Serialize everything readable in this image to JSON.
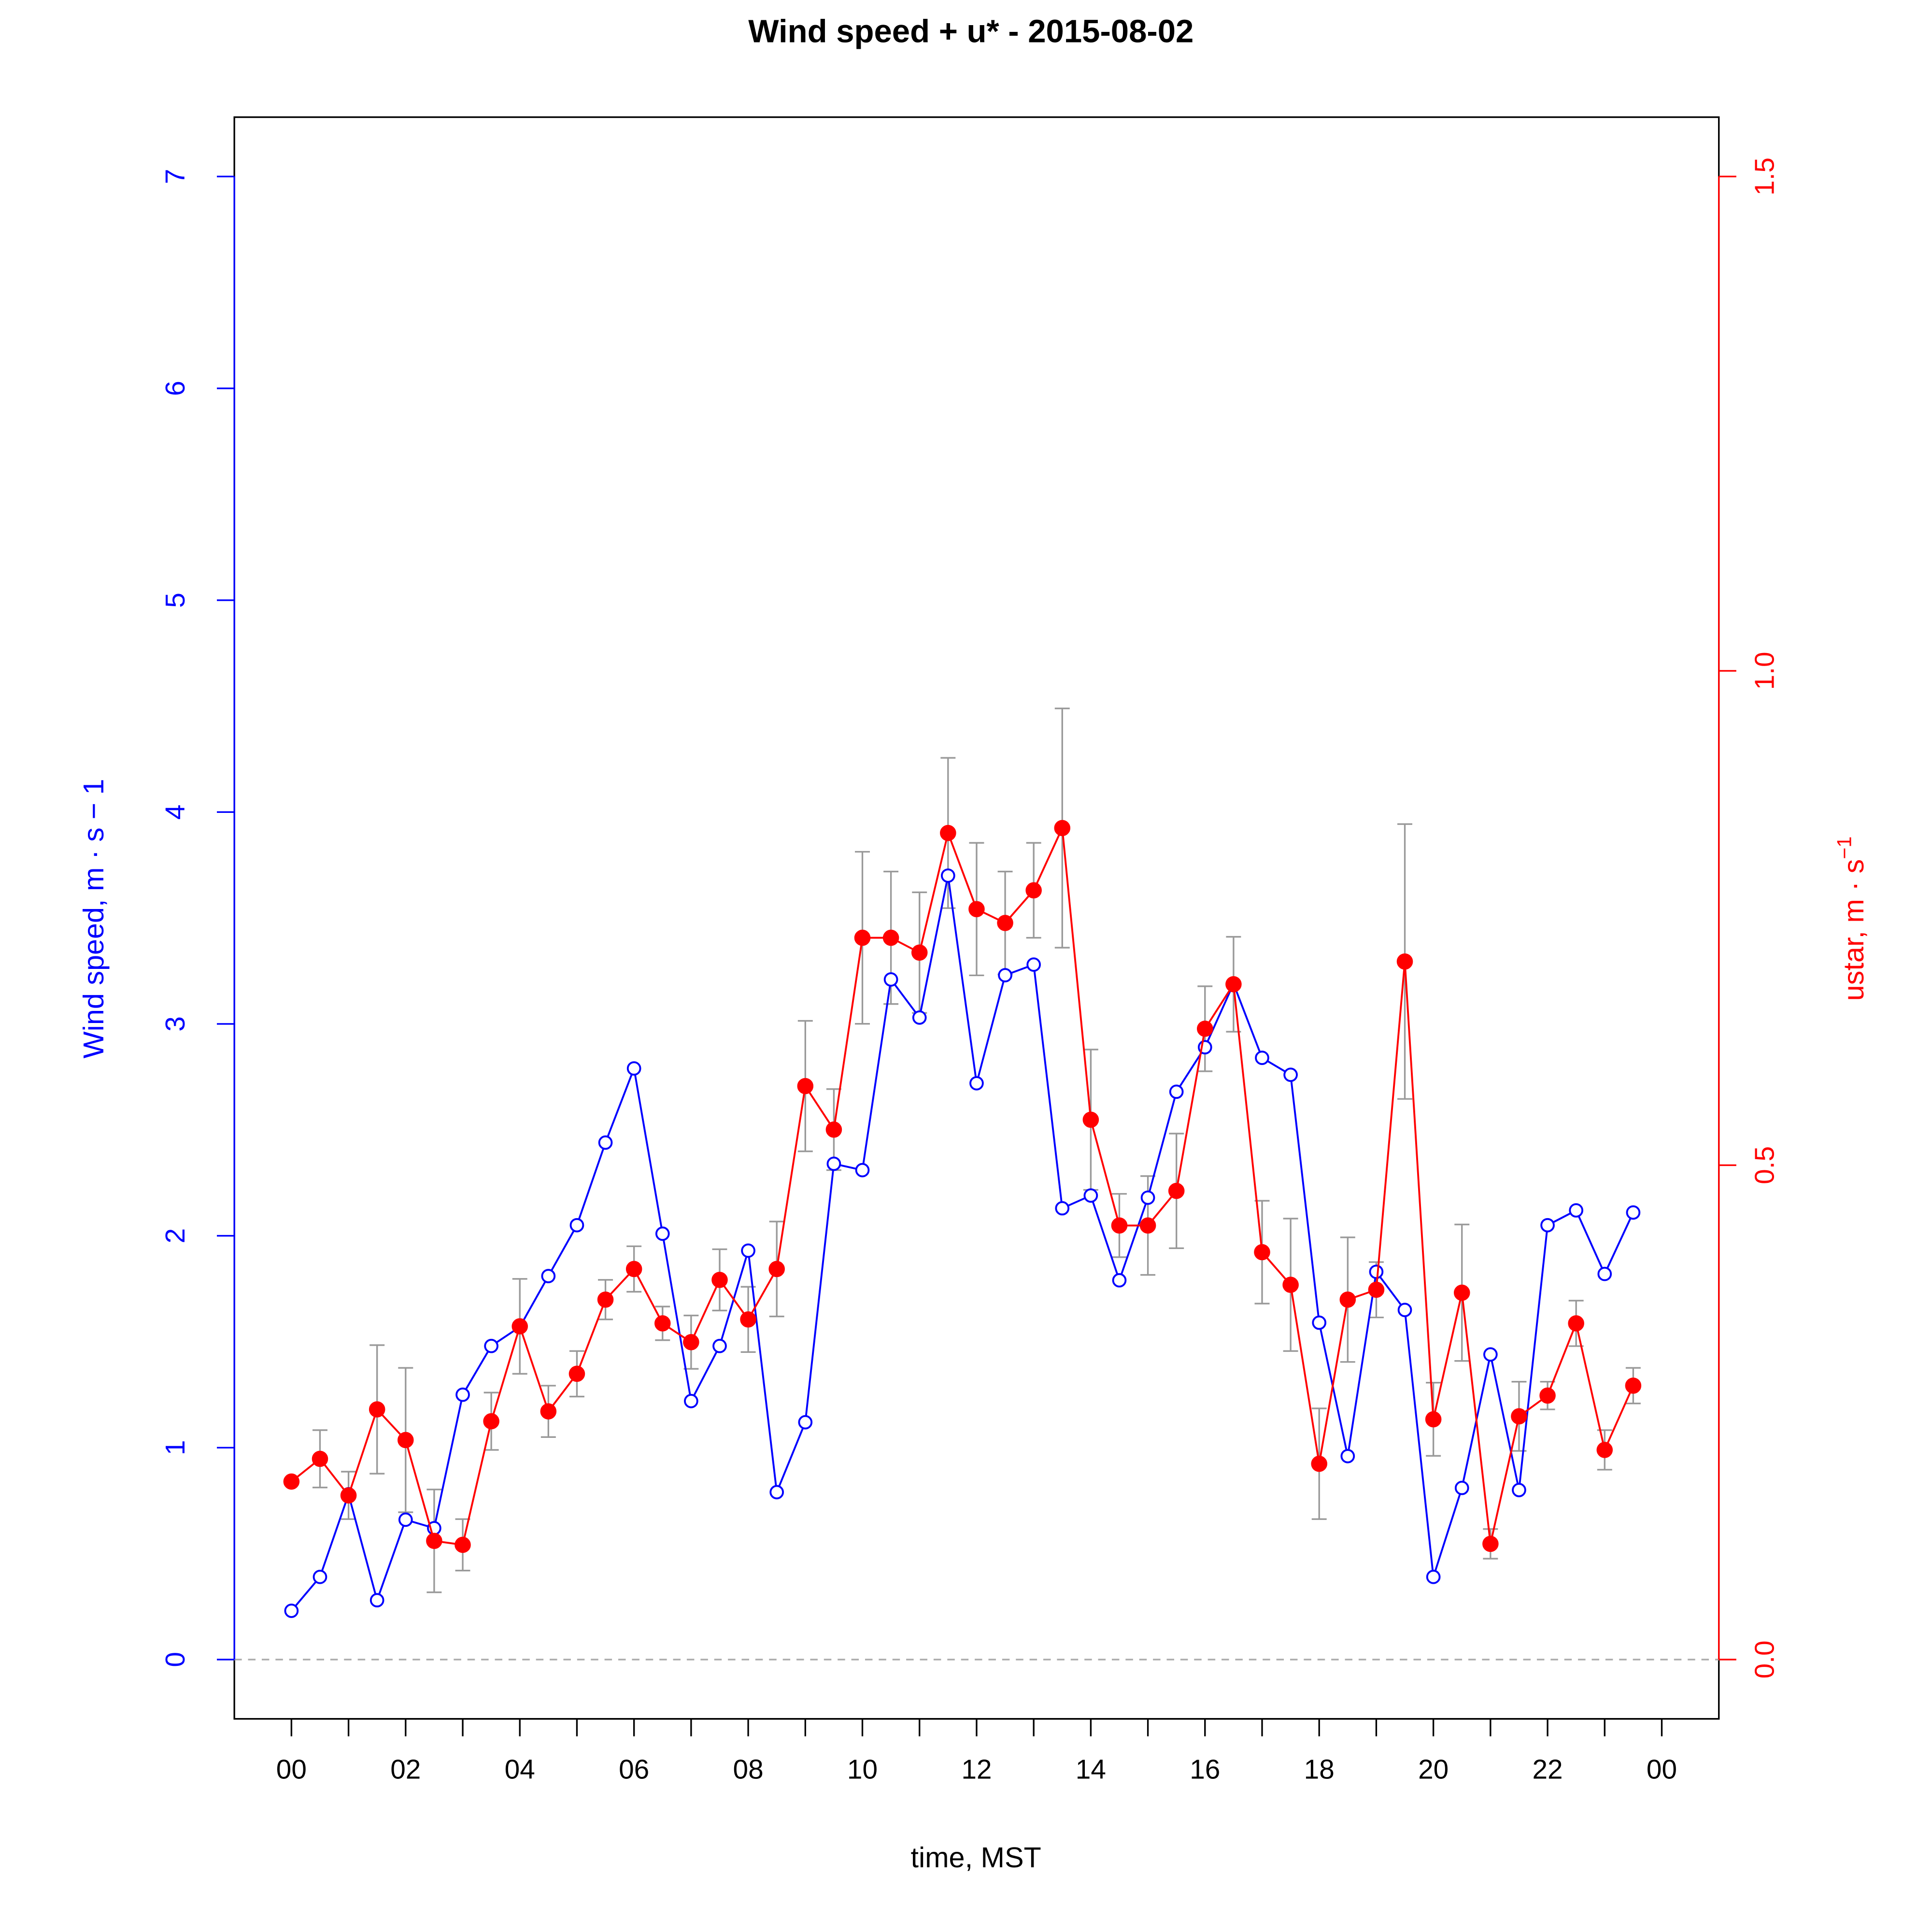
{
  "chart_data": {
    "type": "line",
    "title": "Wind speed + u* -  2015-08-02",
    "xlabel": "time, MST",
    "ylabel_left": "Wind speed, m · s − 1",
    "ylabel_right_main": "ustar, m · s",
    "ylabel_right_sup": "−1",
    "x_ticks": [
      0,
      1,
      2,
      3,
      4,
      5,
      6,
      7,
      8,
      9,
      10,
      11,
      12,
      13,
      14,
      15,
      16,
      17,
      18,
      19,
      20,
      21,
      22,
      23,
      24
    ],
    "x_tick_labels": [
      "00",
      "02",
      "04",
      "06",
      "08",
      "10",
      "12",
      "14",
      "16",
      "18",
      "20",
      "22",
      "00"
    ],
    "x_tick_label_hours": [
      0,
      2,
      4,
      6,
      8,
      10,
      12,
      14,
      16,
      18,
      20,
      22,
      24
    ],
    "xlim": [
      -1,
      25
    ],
    "left_axis": {
      "ylim": [
        -0.28,
        7.28
      ],
      "ticks": [
        "0",
        "1",
        "2",
        "3",
        "4",
        "5",
        "6",
        "7"
      ],
      "color": "#0000ff"
    },
    "right_axis": {
      "ylim": [
        -0.06,
        1.56
      ],
      "ticks": [
        "0.0",
        "0.5",
        "1.0",
        "1.5"
      ],
      "color": "#ff0000"
    },
    "zero_line_color": "#aaaaaa",
    "x": [
      0,
      0.5,
      1,
      1.5,
      2,
      2.5,
      3,
      3.5,
      4,
      4.5,
      5,
      5.5,
      6,
      6.5,
      7,
      7.5,
      8,
      8.5,
      9,
      9.5,
      10,
      10.5,
      11,
      11.5,
      12,
      12.5,
      13,
      13.5,
      14,
      14.5,
      15,
      15.5,
      16,
      16.5,
      17,
      17.5,
      18,
      18.5,
      19,
      19.5,
      20,
      20.5,
      21,
      21.5,
      22,
      22.5,
      23,
      23.5
    ],
    "series": [
      {
        "name": "Wind speed",
        "axis": "left",
        "color": "#0000ff",
        "marker": "open-circle",
        "values": [
          0.23,
          0.39,
          0.78,
          0.28,
          0.66,
          0.62,
          1.25,
          1.48,
          1.57,
          1.81,
          2.05,
          2.44,
          2.79,
          2.01,
          1.22,
          1.48,
          1.93,
          0.79,
          1.12,
          2.34,
          2.31,
          3.21,
          3.03,
          3.7,
          2.72,
          3.23,
          3.28,
          2.13,
          2.19,
          1.79,
          2.18,
          2.68,
          2.89,
          3.19,
          2.84,
          2.76,
          1.59,
          0.96,
          1.83,
          1.65,
          0.39,
          0.81,
          1.44,
          0.8,
          2.05,
          2.12,
          1.82,
          2.11
        ]
      },
      {
        "name": "ustar",
        "axis": "right",
        "color": "#ff0000",
        "marker": "filled-circle",
        "values": [
          0.18,
          0.203,
          0.166,
          0.253,
          0.222,
          0.12,
          0.116,
          0.241,
          0.337,
          0.251,
          0.289,
          0.364,
          0.395,
          0.34,
          0.321,
          0.384,
          0.344,
          0.395,
          0.58,
          0.536,
          0.73,
          0.73,
          0.715,
          0.836,
          0.759,
          0.745,
          0.778,
          0.841,
          0.546,
          0.439,
          0.439,
          0.474,
          0.638,
          0.683,
          0.412,
          0.379,
          0.198,
          0.364,
          0.374,
          0.706,
          0.243,
          0.371,
          0.117,
          0.246,
          0.267,
          0.34,
          0.212,
          0.277
        ],
        "error": [
          0,
          0.029,
          0.024,
          0.065,
          0.073,
          0.052,
          0.026,
          0.029,
          0.048,
          0.026,
          0.023,
          0.02,
          0.023,
          0.017,
          0.027,
          0.031,
          0.033,
          0.048,
          0.066,
          0.041,
          0.087,
          0.067,
          0.061,
          0.076,
          0.067,
          0.052,
          0.048,
          0.121,
          0.071,
          0.032,
          0.05,
          0.058,
          0.043,
          0.048,
          0.052,
          0.067,
          0.056,
          0.063,
          0.028,
          0.139,
          0.037,
          0.069,
          0.015,
          0.035,
          0.014,
          0.023,
          0.02,
          0.018
        ],
        "error_color": "#999999"
      }
    ]
  }
}
